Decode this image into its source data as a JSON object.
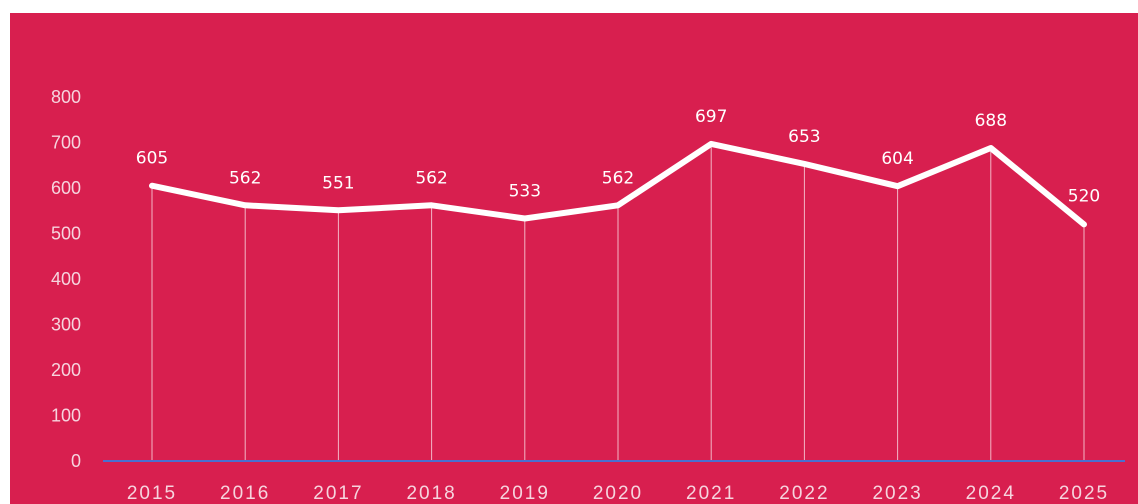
{
  "chart_data": {
    "type": "line",
    "categories": [
      "2015",
      "2016",
      "2017",
      "2018",
      "2019",
      "2020",
      "2021",
      "2022",
      "2023",
      "2024",
      "2025"
    ],
    "series": [
      {
        "values": [
          605,
          562,
          551,
          562,
          533,
          562,
          697,
          653,
          604,
          688,
          520
        ]
      }
    ],
    "data_labels": [
      "605",
      "562",
      "551",
      "562",
      "533",
      "562",
      "697",
      "653",
      "604",
      "688",
      "520"
    ],
    "y_ticks": [
      "0",
      "100",
      "200",
      "300",
      "400",
      "500",
      "600",
      "700",
      "800"
    ],
    "ylim": [
      0,
      800
    ],
    "title": "",
    "xlabel": "",
    "ylabel": "",
    "grid": false,
    "drop_lines": true,
    "legend": "none",
    "colors": {
      "background": "#d81f4f",
      "line": "#ffffff",
      "drop_line": "#f3b6c6",
      "axis": "#4a6fd0",
      "tick_text": "#f6d4de"
    }
  }
}
